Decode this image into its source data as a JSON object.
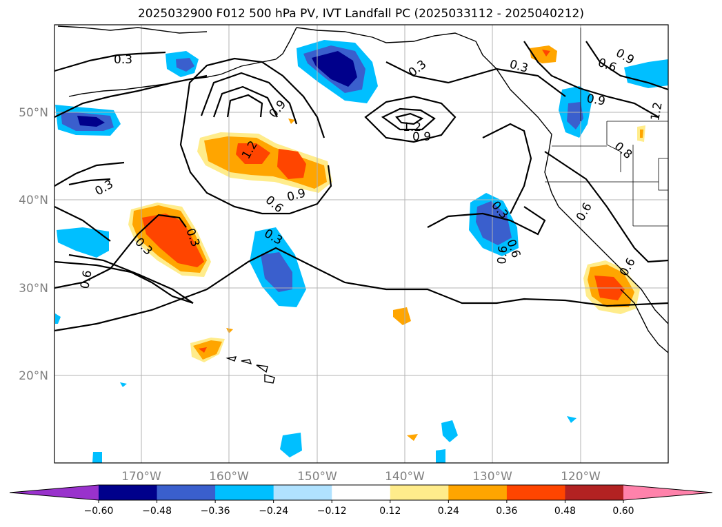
{
  "title": "2025032900 F012 500 hPa PV, IVT Landfall PC (2025033112 - 2025040212)",
  "axes": {
    "lat_ticks": [
      "20°N",
      "30°N",
      "40°N",
      "50°N"
    ],
    "lon_ticks": [
      "170°W",
      "160°W",
      "150°W",
      "140°W",
      "130°W",
      "120°W"
    ]
  },
  "colorbar": {
    "ticks": [
      "−0.60",
      "−0.48",
      "−0.36",
      "−0.24",
      "−0.12",
      "0.12",
      "0.24",
      "0.36",
      "0.48",
      "0.60"
    ],
    "colors": [
      "#9932cc",
      "#00008b",
      "#3a5fcd",
      "#00bfff",
      "#b0e2ff",
      "#ffffff",
      "#ffec8b",
      "#ffa500",
      "#ff4500",
      "#b22222",
      "#ff82ab"
    ]
  },
  "contour_labels": [
    "0.3",
    "0.3",
    "0.3",
    "0.3",
    "0.3",
    "0.3",
    "0.3",
    "0.3",
    "0.6",
    "0.6",
    "0.6",
    "0.6",
    "0.6",
    "0.6",
    "0.9",
    "0.9",
    "0.9",
    "0.9",
    "0.9",
    "1.2",
    "1.2",
    "1.2",
    "0.8",
    "0.6"
  ]
}
